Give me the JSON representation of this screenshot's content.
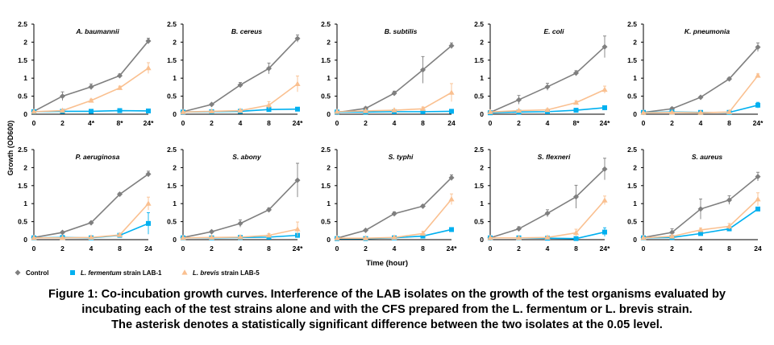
{
  "figure": {
    "ylabel": "Growth (OD600)",
    "xlabel": "Time (hour)",
    "legend": [
      {
        "label": "Control",
        "italic_prefix": "",
        "color": "#7f7f7f",
        "marker": "diamond"
      },
      {
        "label": " strain LAB-1",
        "italic_prefix": "L. fermentum",
        "color": "#00b0f0",
        "marker": "square"
      },
      {
        "label": " strain LAB-5",
        "italic_prefix": "L. brevis",
        "color": "#fac090",
        "marker": "triangle"
      }
    ],
    "colors": {
      "control": "#7f7f7f",
      "lab1": "#00b0f0",
      "lab5": "#fac090"
    }
  },
  "caption": {
    "line1": "Figure 1: Co-incubation growth curves. Interference of the LAB isolates on the growth of the test organisms evaluated by",
    "line2": "incubating each of the test strains alone and with the CFS prepared from  the L. fermentum or L. brevis strain.",
    "line3": "The asterisk denotes a statistically significant difference between the two isolates at the 0.05 level."
  },
  "chart_data": [
    {
      "type": "line",
      "title": "A. baumannii",
      "categories": [
        "0",
        "2",
        "4*",
        "8*",
        "24*"
      ],
      "ylim": [
        0,
        2.5
      ],
      "yticks": [
        "0",
        "0.5",
        "1",
        "1.5",
        "2",
        "2.5"
      ],
      "series": [
        {
          "name": "Control",
          "values": [
            0.08,
            0.5,
            0.76,
            1.07,
            2.03
          ],
          "err": [
            0.04,
            0.12,
            0.08,
            0.05,
            0.08
          ]
        },
        {
          "name": "L. fermentum strain LAB-1",
          "values": [
            0.07,
            0.08,
            0.08,
            0.1,
            0.09
          ],
          "err": [
            0.02,
            0.02,
            0.02,
            0.02,
            0.02
          ]
        },
        {
          "name": "L. brevis strain LAB-5",
          "values": [
            0.07,
            0.1,
            0.38,
            0.73,
            1.28
          ],
          "err": [
            0.02,
            0.03,
            0.04,
            0.05,
            0.15
          ]
        }
      ]
    },
    {
      "type": "line",
      "title": "B. cereus",
      "categories": [
        "0",
        "2",
        "4",
        "8",
        "24*"
      ],
      "ylim": [
        0,
        2.5
      ],
      "yticks": [
        "0",
        "0.5",
        "1",
        "1.5",
        "2",
        "2.5"
      ],
      "series": [
        {
          "name": "Control",
          "values": [
            0.07,
            0.27,
            0.81,
            1.27,
            2.1
          ],
          "err": [
            0.02,
            0.03,
            0.07,
            0.15,
            0.1
          ]
        },
        {
          "name": "L. fermentum strain LAB-1",
          "values": [
            0.06,
            0.07,
            0.08,
            0.13,
            0.14
          ],
          "err": [
            0.02,
            0.02,
            0.02,
            0.03,
            0.03
          ]
        },
        {
          "name": "L. brevis strain LAB-5",
          "values": [
            0.06,
            0.08,
            0.1,
            0.25,
            0.84
          ],
          "err": [
            0.02,
            0.02,
            0.02,
            0.1,
            0.22
          ]
        }
      ]
    },
    {
      "type": "line",
      "title": "B. subtilis",
      "categories": [
        "0",
        "2",
        "4",
        "8",
        "24"
      ],
      "ylim": [
        0,
        2.5
      ],
      "yticks": [
        "0",
        "0.5",
        "1",
        "1.5",
        "2",
        "2.5"
      ],
      "series": [
        {
          "name": "Control",
          "values": [
            0.05,
            0.16,
            0.58,
            1.23,
            1.9
          ],
          "err": [
            0.02,
            0.04,
            0.06,
            0.37,
            0.08
          ]
        },
        {
          "name": "L. fermentum strain LAB-1",
          "values": [
            0.06,
            0.06,
            0.07,
            0.07,
            0.08
          ],
          "err": [
            0.02,
            0.02,
            0.02,
            0.02,
            0.02
          ]
        },
        {
          "name": "L. brevis strain LAB-5",
          "values": [
            0.07,
            0.09,
            0.11,
            0.15,
            0.6
          ],
          "err": [
            0.02,
            0.02,
            0.02,
            0.05,
            0.25
          ]
        }
      ]
    },
    {
      "type": "line",
      "title": "E. coli",
      "categories": [
        "0",
        "2",
        "4",
        "8*",
        "24*"
      ],
      "ylim": [
        0,
        2.5
      ],
      "yticks": [
        "0",
        "0.5",
        "1",
        "1.5",
        "2",
        "2.5"
      ],
      "series": [
        {
          "name": "Control",
          "values": [
            0.05,
            0.4,
            0.76,
            1.14,
            1.87
          ],
          "err": [
            0.02,
            0.12,
            0.1,
            0.07,
            0.3
          ]
        },
        {
          "name": "L. fermentum strain LAB-1",
          "values": [
            0.04,
            0.06,
            0.07,
            0.11,
            0.18
          ],
          "err": [
            0.02,
            0.02,
            0.02,
            0.03,
            0.05
          ]
        },
        {
          "name": "L. brevis strain LAB-5",
          "values": [
            0.06,
            0.1,
            0.12,
            0.32,
            0.68
          ],
          "err": [
            0.02,
            0.02,
            0.03,
            0.05,
            0.1
          ]
        }
      ]
    },
    {
      "type": "line",
      "title": "K. pneumonia",
      "categories": [
        "0",
        "2",
        "4",
        "8",
        "24*"
      ],
      "ylim": [
        0,
        2.5
      ],
      "yticks": [
        "0",
        "0.5",
        "1",
        "1.5",
        "2",
        "2.5"
      ],
      "series": [
        {
          "name": "Control",
          "values": [
            0.05,
            0.15,
            0.47,
            0.98,
            1.86
          ],
          "err": [
            0.02,
            0.04,
            0.03,
            0.04,
            0.12
          ]
        },
        {
          "name": "L. fermentum strain LAB-1",
          "values": [
            0.05,
            0.06,
            0.05,
            0.05,
            0.25
          ],
          "err": [
            0.02,
            0.02,
            0.02,
            0.02,
            0.08
          ]
        },
        {
          "name": "L. brevis strain LAB-5",
          "values": [
            0.04,
            0.05,
            0.04,
            0.06,
            1.07
          ],
          "err": [
            0.02,
            0.02,
            0.02,
            0.02,
            0.05
          ]
        }
      ]
    },
    {
      "type": "line",
      "title": "P. aeruginosa",
      "categories": [
        "0",
        "2",
        "4",
        "8",
        "24"
      ],
      "ylim": [
        0,
        2.5
      ],
      "yticks": [
        "0",
        "0.5",
        "1",
        "1.5",
        "2",
        "2.5"
      ],
      "series": [
        {
          "name": "Control",
          "values": [
            0.06,
            0.2,
            0.47,
            1.26,
            1.82
          ],
          "err": [
            0.02,
            0.03,
            0.03,
            0.04,
            0.08
          ]
        },
        {
          "name": "L. fermentum strain LAB-1",
          "values": [
            0.05,
            0.06,
            0.05,
            0.12,
            0.45
          ],
          "err": [
            0.02,
            0.02,
            0.02,
            0.03,
            0.3
          ]
        },
        {
          "name": "L. brevis strain LAB-5",
          "values": [
            0.05,
            0.05,
            0.06,
            0.13,
            1.0
          ],
          "err": [
            0.02,
            0.02,
            0.02,
            0.04,
            0.18
          ]
        }
      ]
    },
    {
      "type": "line",
      "title": "S. abony",
      "categories": [
        "0",
        "2",
        "4",
        "8",
        "24*"
      ],
      "ylim": [
        0,
        2.5
      ],
      "yticks": [
        "0",
        "0.5",
        "1",
        "1.5",
        "2",
        "2.5"
      ],
      "series": [
        {
          "name": "Control",
          "values": [
            0.06,
            0.22,
            0.45,
            0.83,
            1.65
          ],
          "err": [
            0.02,
            0.03,
            0.1,
            0.05,
            0.47
          ]
        },
        {
          "name": "L. fermentum strain LAB-1",
          "values": [
            0.05,
            0.05,
            0.06,
            0.07,
            0.12
          ],
          "err": [
            0.02,
            0.02,
            0.02,
            0.02,
            0.04
          ]
        },
        {
          "name": "L. brevis strain LAB-5",
          "values": [
            0.05,
            0.06,
            0.07,
            0.12,
            0.29
          ],
          "err": [
            0.02,
            0.02,
            0.02,
            0.05,
            0.2
          ]
        }
      ]
    },
    {
      "type": "line",
      "title": "S. typhi",
      "categories": [
        "0",
        "2",
        "4",
        "8",
        "24*"
      ],
      "ylim": [
        0,
        2.5
      ],
      "yticks": [
        "0",
        "0.5",
        "1",
        "1.5",
        "2",
        "2.5"
      ],
      "series": [
        {
          "name": "Control",
          "values": [
            0.04,
            0.26,
            0.72,
            0.93,
            1.72
          ],
          "err": [
            0.02,
            0.03,
            0.05,
            0.04,
            0.08
          ]
        },
        {
          "name": "L. fermentum strain LAB-1",
          "values": [
            0.03,
            0.03,
            0.05,
            0.1,
            0.28
          ],
          "err": [
            0.02,
            0.02,
            0.02,
            0.03,
            0.04
          ]
        },
        {
          "name": "L. brevis strain LAB-5",
          "values": [
            0.04,
            0.04,
            0.06,
            0.17,
            1.12
          ],
          "err": [
            0.02,
            0.02,
            0.02,
            0.06,
            0.15
          ]
        }
      ]
    },
    {
      "type": "line",
      "title": "S. flexneri",
      "categories": [
        "0",
        "2",
        "4",
        "8",
        "24*"
      ],
      "ylim": [
        0,
        2.5
      ],
      "yticks": [
        "0",
        "0.5",
        "1",
        "1.5",
        "2",
        "2.5"
      ],
      "series": [
        {
          "name": "Control",
          "values": [
            0.05,
            0.3,
            0.73,
            1.19,
            1.96
          ],
          "err": [
            0.02,
            0.06,
            0.1,
            0.32,
            0.3
          ]
        },
        {
          "name": "L. fermentum strain LAB-1",
          "values": [
            0.05,
            0.05,
            0.04,
            0.03,
            0.21
          ],
          "err": [
            0.02,
            0.02,
            0.02,
            0.02,
            0.12
          ]
        },
        {
          "name": "L. brevis strain LAB-5",
          "values": [
            0.05,
            0.05,
            0.06,
            0.19,
            1.09
          ],
          "err": [
            0.02,
            0.02,
            0.02,
            0.1,
            0.12
          ]
        }
      ]
    },
    {
      "type": "line",
      "title": "S. aureus",
      "categories": [
        "0",
        "2",
        "4",
        "8",
        "24"
      ],
      "ylim": [
        0,
        2.5
      ],
      "yticks": [
        "0",
        "0.5",
        "1",
        "1.5",
        "2",
        "2.5"
      ],
      "series": [
        {
          "name": "Control",
          "values": [
            0.06,
            0.2,
            0.85,
            1.1,
            1.75
          ],
          "err": [
            0.02,
            0.1,
            0.28,
            0.12,
            0.12
          ]
        },
        {
          "name": "L. fermentum strain LAB-1",
          "values": [
            0.05,
            0.06,
            0.17,
            0.3,
            0.85
          ],
          "err": [
            0.02,
            0.02,
            0.03,
            0.05,
            0.05
          ]
        },
        {
          "name": "L. brevis strain LAB-5",
          "values": [
            0.05,
            0.09,
            0.27,
            0.37,
            1.12
          ],
          "err": [
            0.02,
            0.03,
            0.05,
            0.08,
            0.18
          ]
        }
      ]
    }
  ]
}
